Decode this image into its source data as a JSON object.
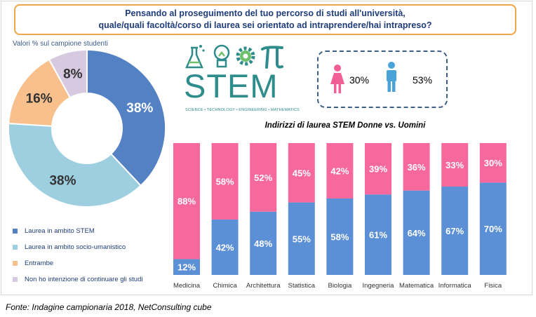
{
  "header": {
    "question_line1": "Pensando al proseguimento del tuo percorso di studi all'università,",
    "question_line2": "quale/quali facoltà/corso di laurea sei orientato ad intraprendere/hai intrapreso?"
  },
  "sample_label": "Valori % sul campione studenti",
  "stem_logo": {
    "word": "STEM",
    "subtitle": "SCIENCE • TECHNOLOGY • ENGINEERING • MATHEMATICS",
    "icons": [
      "flask-icon",
      "lightbulb-icon",
      "gear-icon",
      "pi-icon"
    ]
  },
  "gender": {
    "female_value": "30%",
    "male_value": "53%",
    "female_color": "#f25f97",
    "male_color": "#4aa3d8"
  },
  "source": "Fonte: Indagine campionaria 2018, NetConsulting cube",
  "chart_data": [
    {
      "type": "pie",
      "title": "",
      "labels": [
        "Laurea in ambito STEM",
        "Laurea in ambito socio-umanistico",
        "Entrambe",
        "Non ho intenzione di continuare gli studi"
      ],
      "values": [
        38,
        38,
        16,
        8
      ],
      "value_labels": [
        "38%",
        "38%",
        "16%",
        "8%"
      ],
      "colors": [
        "#5381c3",
        "#9dcfe0",
        "#f8c08c",
        "#d6c9e0"
      ],
      "legend_position": "bottom-left"
    },
    {
      "type": "bar",
      "stacked": true,
      "percent": true,
      "title": "Indirizzi di laurea STEM Donne vs. Uomini",
      "categories": [
        "Medicina",
        "Chimica",
        "Architettura",
        "Statistica",
        "Biologia",
        "Ingegneria",
        "Matematica",
        "Informatica",
        "Fisica"
      ],
      "series": [
        {
          "values": [
            12,
            42,
            48,
            55,
            58,
            61,
            64,
            67,
            70
          ],
          "labels": [
            "12%",
            "42%",
            "48%",
            "55%",
            "58%",
            "61%",
            "64%",
            "67%",
            "70%"
          ],
          "color": "#5b8fd6"
        },
        {
          "values": [
            88,
            58,
            52,
            45,
            42,
            39,
            36,
            33,
            30
          ],
          "labels": [
            "88%",
            "58%",
            "52%",
            "45%",
            "42%",
            "39%",
            "36%",
            "33%",
            "30%"
          ],
          "color": "#f7699d"
        }
      ],
      "ylim": [
        0,
        100
      ],
      "legend": "none",
      "grid": false
    }
  ]
}
